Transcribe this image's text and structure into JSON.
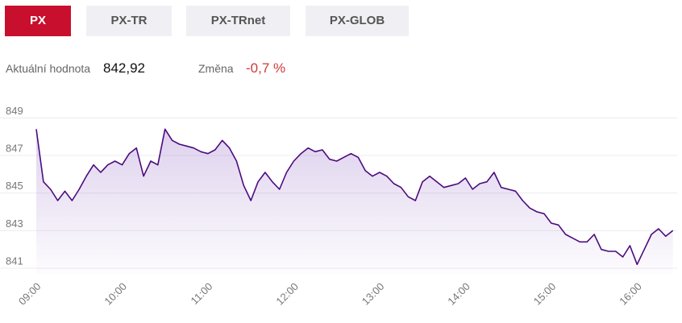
{
  "tabs": [
    "PX",
    "PX-TR",
    "PX-TRnet",
    "PX-GLOB"
  ],
  "info": {
    "current_label": "Aktuální hodnota",
    "current_value": "842,92",
    "change_label": "Změna",
    "change_value": "-0,7 %"
  },
  "chart_data": {
    "type": "line",
    "color": "#4b0b7d",
    "grid": true,
    "xlim": [
      "09:00",
      "16:28"
    ],
    "xticks": [
      "09:00",
      "10:00",
      "11:00",
      "12:00",
      "13:00",
      "14:00",
      "15:00",
      "16:00"
    ],
    "ylim": [
      840.7,
      849.7
    ],
    "yticks": [
      841,
      843,
      845,
      847,
      849
    ],
    "x": [
      "09:00",
      "09:05",
      "09:10",
      "09:15",
      "09:20",
      "09:25",
      "09:30",
      "09:35",
      "09:40",
      "09:45",
      "09:50",
      "09:55",
      "10:00",
      "10:05",
      "10:10",
      "10:15",
      "10:20",
      "10:25",
      "10:30",
      "10:35",
      "10:40",
      "10:45",
      "10:50",
      "10:55",
      "11:00",
      "11:05",
      "11:10",
      "11:15",
      "11:20",
      "11:25",
      "11:30",
      "11:35",
      "11:40",
      "11:45",
      "11:50",
      "11:55",
      "12:00",
      "12:05",
      "12:10",
      "12:15",
      "12:20",
      "12:25",
      "12:30",
      "12:35",
      "12:40",
      "12:45",
      "12:50",
      "12:55",
      "13:00",
      "13:05",
      "13:10",
      "13:15",
      "13:20",
      "13:25",
      "13:30",
      "13:35",
      "13:40",
      "13:45",
      "13:50",
      "13:55",
      "14:00",
      "14:05",
      "14:10",
      "14:15",
      "14:20",
      "14:25",
      "14:30",
      "14:35",
      "14:40",
      "14:45",
      "14:50",
      "14:55",
      "15:00",
      "15:05",
      "15:10",
      "15:15",
      "15:20",
      "15:25",
      "15:30",
      "15:35",
      "15:40",
      "15:45",
      "15:50",
      "15:55",
      "16:00",
      "16:05",
      "16:10",
      "16:15",
      "16:20",
      "16:25"
    ],
    "values": [
      848.4,
      845.6,
      845.2,
      844.6,
      845.1,
      844.6,
      845.2,
      845.9,
      846.5,
      846.1,
      846.5,
      846.7,
      846.5,
      847.1,
      847.4,
      845.9,
      846.7,
      846.5,
      848.4,
      847.8,
      847.6,
      847.5,
      847.4,
      847.2,
      847.1,
      847.3,
      847.8,
      847.4,
      846.7,
      845.4,
      844.6,
      845.6,
      846.1,
      845.6,
      845.2,
      846.1,
      846.7,
      847.1,
      847.4,
      847.2,
      847.3,
      846.8,
      846.7,
      846.9,
      847.1,
      846.9,
      846.2,
      845.9,
      846.1,
      845.9,
      845.5,
      845.3,
      844.8,
      844.6,
      845.6,
      845.9,
      845.6,
      845.3,
      845.4,
      845.5,
      845.8,
      845.2,
      845.5,
      845.6,
      846.1,
      845.3,
      845.2,
      845.1,
      844.6,
      844.2,
      844.0,
      843.9,
      843.4,
      843.3,
      842.8,
      842.6,
      842.4,
      842.4,
      842.8,
      842.0,
      841.9,
      841.9,
      841.6,
      842.2,
      841.2,
      842.0,
      842.8,
      843.1,
      842.7,
      843.0
    ]
  }
}
